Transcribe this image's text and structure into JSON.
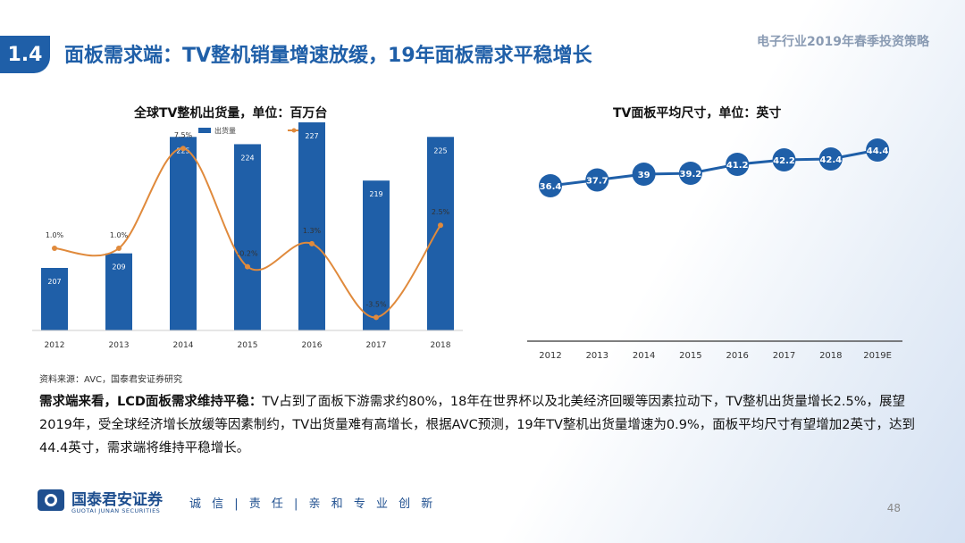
{
  "header": {
    "section_number": "1.4",
    "title": "面板需求端：TV整机销量增速放缓，19年面板需求平稳增长",
    "report_title": "电子行业2019年春季投资策略"
  },
  "chart_data": [
    {
      "type": "bar",
      "title": "全球TV整机出货量，单位：百万台",
      "categories": [
        "2012",
        "2013",
        "2014",
        "2015",
        "2016",
        "2017",
        "2018"
      ],
      "series": [
        {
          "name": "出货量",
          "type": "bar",
          "values": [
            207,
            209,
            225,
            224,
            227,
            219,
            225
          ],
          "color": "#1f5fa8"
        },
        {
          "name": "同比",
          "type": "line",
          "values": [
            1.0,
            1.0,
            7.5,
            -0.2,
            1.3,
            -3.5,
            2.5
          ],
          "labels": [
            "1.0%",
            "1.0%",
            "7.5%",
            "-0.2%",
            "1.3%",
            "-3.5%",
            "2.5%"
          ],
          "color": "#e08a3c"
        }
      ],
      "legend": "top-center"
    },
    {
      "type": "line",
      "title": "TV面板平均尺寸，单位：英寸",
      "categories": [
        "2012",
        "2013",
        "2014",
        "2015",
        "2016",
        "2017",
        "2018",
        "2019E"
      ],
      "series": [
        {
          "values": [
            36.4,
            37.7,
            39,
            39.2,
            41.2,
            42.2,
            42.4,
            44.4
          ],
          "labels": [
            "36.4",
            "37.7",
            "39",
            "39.2",
            "41.2",
            "42.2",
            "42.4",
            "44.4"
          ],
          "color": "#1f5fa8"
        }
      ]
    }
  ],
  "source": "资料来源：AVC，国泰君安证券研究",
  "body": {
    "lead": "需求端来看，LCD面板需求维持平稳：",
    "text": "TV占到了面板下游需求约80%，18年在世界杯以及北美经济回暖等因素拉动下，TV整机出货量增长2.5%，展望2019年，受全球经济增长放缓等因素制约，TV出货量难有高增长，根据AVC预测，19年TV整机出货量增速为0.9%，面板平均尺寸有望增加2英寸，达到44.4英寸，需求端将维持平稳增长。"
  },
  "footer": {
    "company_cn": "国泰君安证券",
    "company_en": "GUOTAI JUNAN SECURITIES",
    "motto": "诚 信 | 责 任 | 亲 和  专 业  创 新",
    "page_number": "48"
  }
}
